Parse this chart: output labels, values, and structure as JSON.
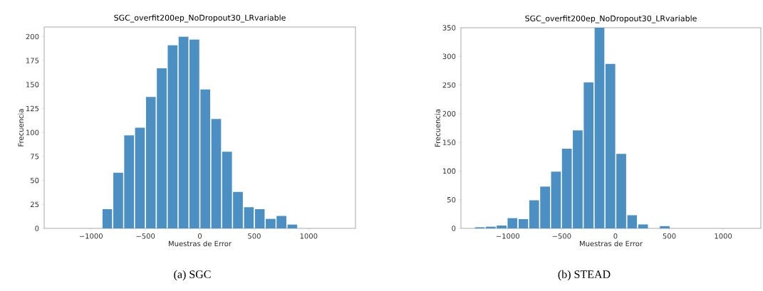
{
  "chart_data": [
    {
      "type": "histogram",
      "title": "SGC_overfit200ep_NoDropout30_LRvariable",
      "xlabel": "Muestras de Error",
      "ylabel": "Frecuencia",
      "color": "#4b8fc3",
      "bins": [
        -900,
        -800,
        -700,
        -600,
        -500,
        -400,
        -300,
        -200,
        -100,
        0,
        100,
        200,
        300,
        400,
        500,
        600,
        700,
        800,
        900
      ],
      "values": [
        20,
        58,
        97,
        105,
        137,
        167,
        191,
        200,
        197,
        145,
        114,
        80,
        38,
        22,
        20,
        10,
        13,
        4
      ],
      "xlim": [
        -1430,
        1430
      ],
      "ylim": [
        0,
        210
      ],
      "xticks": [
        -1000,
        -500,
        0,
        500,
        1000
      ],
      "yticks": [
        0,
        25,
        50,
        75,
        100,
        125,
        150,
        175,
        200
      ],
      "annotations": [
        "(a)  SGC"
      ]
    },
    {
      "type": "histogram",
      "title": "SGC_overfit200ep_NoDropout30_LRvariable",
      "xlabel": "Muestras de Error",
      "ylabel": "Frecuencia",
      "color": "#4b8fc3",
      "bins": [
        -1310,
        -1209,
        -1108,
        -1007,
        -906,
        -805,
        -704,
        -603,
        -502,
        -401,
        -300,
        -199,
        -98,
        3,
        104,
        205,
        306,
        407,
        508
      ],
      "values": [
        2,
        3,
        5,
        18,
        16,
        49,
        73,
        99,
        139,
        171,
        255,
        350,
        287,
        130,
        23,
        7,
        0,
        4
      ],
      "xlim": [
        -1435,
        1350
      ],
      "ylim": [
        0,
        350
      ],
      "xticks": [
        -1000,
        -500,
        0,
        500,
        1000
      ],
      "yticks": [
        0,
        50,
        100,
        150,
        200,
        250,
        300,
        350
      ],
      "annotations": [
        "(b)  STEAD"
      ]
    }
  ]
}
